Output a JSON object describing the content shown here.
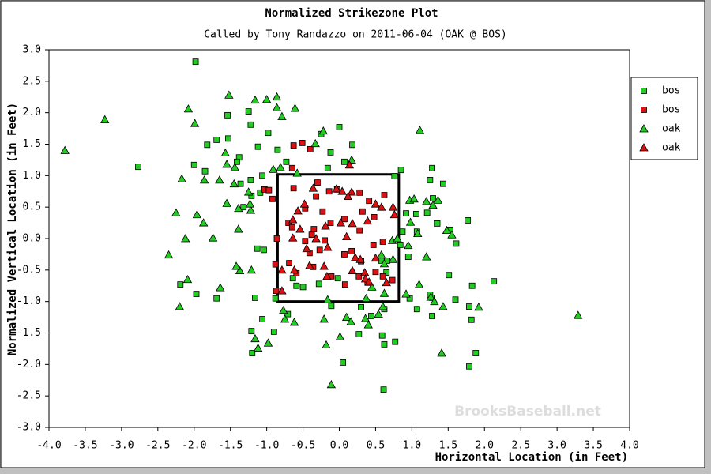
{
  "chart_data": {
    "type": "scatter",
    "title": "Normalized Strikezone Plot",
    "subtitle": "Called by Tony Randazzo on 2011-06-04 (OAK @ BOS)",
    "x_label": "Horizontal Location (in Feet)",
    "y_label": "Normalized Vertical Location (in Feet)",
    "watermark": "BrooksBaseball.net",
    "legend": "right",
    "xlim": [
      -4,
      4
    ],
    "ylim": [
      -3,
      3
    ],
    "xticks": [
      {
        "value": -4,
        "label": "-4.0"
      },
      -3.5,
      {
        "value": -3,
        "label": "-3.0"
      },
      -2.5,
      {
        "value": -2,
        "label": "-2.0"
      },
      -1.5,
      {
        "value": -1,
        "label": "-1.0"
      },
      -0.5,
      {
        "value": 0,
        "label": "0.0"
      },
      0.5,
      {
        "value": 1,
        "label": "1.0"
      },
      1.5,
      {
        "value": 2,
        "label": "2.0"
      },
      2.5,
      {
        "value": 3,
        "label": "3.0"
      },
      3.5,
      {
        "value": 4,
        "label": "4.0"
      }
    ],
    "yticks": [
      {
        "value": -3,
        "label": "-3.0"
      },
      -2.5,
      {
        "value": -2,
        "label": "-2.0"
      },
      -1.5,
      {
        "value": -1,
        "label": "-1.0"
      },
      -0.5,
      {
        "value": 0,
        "label": "0.0"
      },
      0.5,
      {
        "value": 1,
        "label": "1.0"
      },
      1.5,
      {
        "value": 2,
        "label": "2.0"
      },
      2.5,
      {
        "value": 3,
        "label": "3.0"
      }
    ],
    "zone": {
      "x": [
        -0.85,
        0.82
      ],
      "y": [
        -1.0,
        1.02
      ]
    },
    "series": [
      {
        "name": "bos",
        "color": "#22cc22",
        "marker": "square",
        "x": [
          -1.98,
          -2.77,
          -2.0,
          -1.82,
          -1.69,
          -1.53,
          -1.54,
          -1.22,
          -1.12,
          -1.38,
          -1.22,
          -1.06,
          -1.85,
          -1.36,
          -1.41,
          -1.21,
          -1.32,
          -1.09,
          -1.25,
          -0.85,
          -0.73,
          -0.98,
          0.0,
          -0.25,
          0.18,
          -0.12,
          0.07,
          -0.16,
          0.85,
          1.28,
          0.76,
          1.25,
          1.43,
          1.29,
          1.21,
          1.06,
          0.92,
          1.77,
          0.87,
          1.07,
          1.35,
          1.53,
          1.61,
          0.84,
          0.95,
          0.66,
          0.58,
          0.65,
          1.51,
          1.83,
          2.13,
          1.25,
          1.28,
          1.6,
          0.97,
          1.07,
          1.82,
          1.79,
          1.88,
          1.79,
          0.62,
          0.44,
          0.77,
          0.59,
          0.62,
          0.61,
          0.05,
          0.27,
          -0.11,
          -0.02,
          -0.28,
          -0.59,
          -0.64,
          -0.5,
          -0.71,
          -0.88,
          -1.04,
          -1.13,
          -1.16,
          -1.21,
          -1.69,
          -1.97,
          -2.19,
          -1.06,
          -0.9,
          -1.2,
          0.3,
          1.28
        ],
        "y": [
          2.81,
          1.14,
          1.17,
          1.49,
          1.57,
          1.59,
          1.96,
          1.81,
          1.46,
          1.29,
          0.93,
          1.0,
          1.07,
          0.87,
          1.22,
          0.68,
          0.5,
          0.73,
          2.02,
          1.41,
          1.22,
          1.68,
          1.77,
          1.66,
          1.49,
          1.37,
          1.22,
          1.12,
          1.09,
          1.12,
          0.99,
          0.93,
          0.87,
          0.64,
          0.41,
          0.39,
          0.4,
          0.29,
          0.11,
          0.11,
          0.24,
          0.14,
          -0.08,
          -0.1,
          -0.29,
          -0.35,
          -0.35,
          -0.54,
          -0.58,
          -0.75,
          -0.68,
          -0.89,
          -0.94,
          -0.97,
          -0.95,
          -1.12,
          -1.29,
          -1.08,
          -1.82,
          -2.03,
          -1.12,
          -1.23,
          -1.64,
          -1.54,
          -1.68,
          -2.4,
          -1.97,
          -1.52,
          -1.07,
          -0.63,
          -0.72,
          -0.75,
          -0.63,
          -0.77,
          -1.2,
          -0.95,
          -0.18,
          -0.16,
          -0.94,
          -1.47,
          -0.95,
          -0.88,
          -0.73,
          -1.28,
          -1.48,
          -1.82,
          -1.09,
          -1.23
        ]
      },
      {
        "name": "bos",
        "color": "#dd1111",
        "marker": "square",
        "x": [
          -0.63,
          -0.51,
          -0.4,
          -0.65,
          -1.03,
          -0.97,
          -0.92,
          -0.3,
          -0.32,
          -0.14,
          -0.03,
          0.28,
          0.41,
          0.62,
          -0.63,
          -0.47,
          -0.23,
          0.32,
          0.48,
          0.07,
          -0.7,
          -0.12,
          -0.35,
          0.28,
          -0.65,
          -0.38,
          -0.86,
          -0.47,
          -0.2,
          0.6,
          0.47,
          0.17,
          -0.41,
          -0.27,
          0.07,
          0.3,
          -0.69,
          -0.36,
          0.5,
          0.6,
          0.27,
          0.08,
          0.73,
          0.39,
          -0.11,
          -0.59,
          -0.88,
          -0.87
        ],
        "y": [
          1.48,
          1.52,
          1.42,
          1.12,
          0.78,
          0.77,
          0.63,
          0.89,
          0.67,
          0.75,
          0.78,
          0.73,
          0.6,
          0.69,
          0.8,
          0.48,
          0.43,
          0.43,
          0.34,
          0.31,
          0.25,
          0.25,
          0.15,
          0.13,
          0.18,
          0.06,
          0,
          -0.04,
          -0.03,
          -0.05,
          -0.1,
          -0.2,
          -0.23,
          -0.18,
          -0.25,
          -0.36,
          -0.39,
          -0.45,
          -0.53,
          -0.6,
          -0.6,
          -0.73,
          -0.66,
          -0.7,
          -0.6,
          -0.55,
          -0.41,
          -0.83
        ]
      },
      {
        "name": "oak",
        "color": "#22cc22",
        "marker": "triangle",
        "x": [
          -3.78,
          -3.23,
          -2.08,
          -1.99,
          -1.52,
          -1.16,
          -1.0,
          -0.86,
          -0.86,
          -0.61,
          -0.79,
          -0.22,
          -0.33,
          -0.81,
          -0.58,
          -0.91,
          -1.57,
          -1.44,
          -1.55,
          -1.65,
          -1.86,
          -2.17,
          -1.96,
          -2.25,
          -1.87,
          -1.74,
          -2.12,
          -2.35,
          -2.09,
          -2.2,
          -1.64,
          -1.39,
          -1.55,
          -1.39,
          -1.22,
          -1.45,
          -1.25,
          -1.23,
          -1.37,
          -1.42,
          -1.21,
          -1.12,
          -1.16,
          -0.98,
          -0.62,
          -0.77,
          -0.75,
          -0.21,
          -0.18,
          -0.11,
          0.01,
          0.1,
          0.16,
          0.36,
          0.4,
          0.37,
          0.54,
          0.6,
          0.45,
          0.62,
          0.58,
          0.74,
          0.73,
          0.62,
          0.8,
          0.98,
          0.95,
          1.2,
          1.08,
          0.97,
          1.03,
          1.2,
          1.29,
          1.36,
          1.48,
          1.55,
          1.43,
          1.41,
          1.92,
          1.26,
          1.31,
          1.1,
          0.92,
          3.29,
          1.11,
          0.17,
          -0.16
        ],
        "y": [
          1.4,
          1.89,
          2.06,
          1.83,
          2.28,
          2.2,
          2.21,
          2.25,
          2.08,
          2.07,
          1.94,
          1.71,
          1.51,
          1.13,
          1.04,
          1.1,
          1.36,
          1.13,
          1.18,
          0.93,
          0.93,
          0.95,
          0.38,
          0.41,
          0.25,
          0.01,
          0,
          -0.26,
          -0.65,
          -1.08,
          -0.78,
          0.15,
          0.56,
          0.48,
          0.45,
          0.87,
          0.74,
          0.55,
          -0.51,
          -0.44,
          -0.5,
          -1.74,
          -1.59,
          -1.66,
          -1.33,
          -1.14,
          -1.28,
          -1.28,
          -1.69,
          -2.32,
          -1.56,
          -1.25,
          -1.32,
          -1.27,
          -1.37,
          -0.95,
          -1.2,
          -1.08,
          -0.77,
          -0.87,
          -0.26,
          -0.33,
          -0.03,
          -0.4,
          0,
          0.26,
          -0.11,
          -0.29,
          0.08,
          0.61,
          0.63,
          0.59,
          0.53,
          0.61,
          0.13,
          0.06,
          -1.08,
          -1.82,
          -1.09,
          -0.93,
          -1.0,
          -0.73,
          -0.88,
          -1.22,
          1.72,
          1.25,
          -0.97
        ]
      },
      {
        "name": "oak",
        "color": "#dd1111",
        "marker": "triangle",
        "x": [
          0.14,
          -0.48,
          -0.57,
          -0.64,
          -0.36,
          -0.04,
          0.04,
          0.17,
          0.12,
          0.5,
          0.58,
          0.74,
          0.76,
          -0.19,
          0.02,
          0.18,
          0.39,
          -0.54,
          -0.64,
          0.1,
          -0.32,
          -0.16,
          -0.45,
          0.22,
          0.29,
          0.5,
          0.18,
          0.35,
          -0.79,
          -0.62,
          -0.41,
          -0.21,
          -0.17,
          0.36,
          0.41,
          -0.79,
          0.65
        ],
        "y": [
          1.17,
          0.55,
          0.44,
          0.3,
          0.8,
          0.79,
          0.75,
          0.74,
          0.67,
          0.55,
          0.5,
          0.5,
          0.38,
          0.2,
          0.25,
          0.24,
          0.28,
          0.15,
          0.01,
          0.03,
          0,
          -0.14,
          -0.16,
          -0.3,
          -0.33,
          -0.31,
          -0.51,
          -0.54,
          -0.5,
          -0.5,
          -0.43,
          -0.44,
          -0.6,
          -0.64,
          -0.69,
          -0.83,
          -0.7
        ]
      }
    ]
  }
}
